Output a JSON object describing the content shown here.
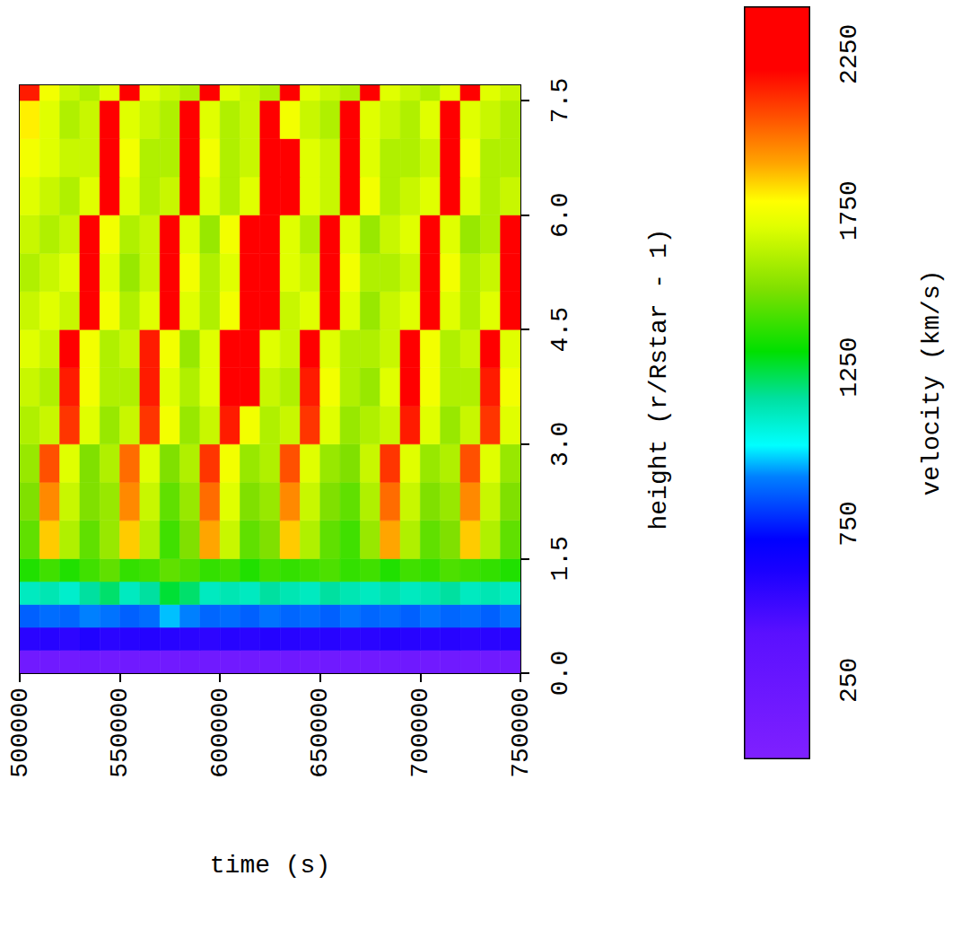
{
  "chart_data": {
    "type": "heatmap",
    "x_label": "time (s)",
    "y_label": "height (r/Rstar - 1)",
    "xlim": [
      500000,
      750000
    ],
    "ylim": [
      0,
      7.7
    ],
    "xticks": [
      500000,
      550000,
      600000,
      650000,
      700000,
      750000
    ],
    "yticks": [
      {
        "value": 0,
        "label": "0.0"
      },
      1.5,
      {
        "value": 3,
        "label": "3.0"
      },
      4.5,
      {
        "value": 6,
        "label": "6.0"
      },
      7.5
    ],
    "grid": false,
    "cells": {
      "x_edges": [
        500000,
        510000,
        520000,
        530000,
        540000,
        550000,
        560000,
        570000,
        580000,
        590000,
        600000,
        610000,
        620000,
        630000,
        640000,
        650000,
        660000,
        670000,
        680000,
        690000,
        700000,
        710000,
        720000,
        730000,
        740000,
        750000
      ],
      "y_edges": [
        0,
        0.3,
        0.6,
        0.9,
        1.2,
        1.5,
        2,
        2.5,
        3,
        3.5,
        4,
        4.5,
        5,
        5.5,
        6,
        6.5,
        7,
        7.5,
        7.7
      ],
      "values": [
        [
          150,
          160,
          150,
          170,
          150,
          160,
          150,
          150,
          170,
          160,
          150,
          160,
          150,
          170,
          150,
          160,
          150,
          150,
          160,
          170,
          150,
          160,
          150,
          160,
          150
        ],
        [
          550,
          560,
          540,
          580,
          550,
          560,
          570,
          560,
          550,
          540,
          560,
          550,
          570,
          560,
          550,
          560,
          540,
          550,
          570,
          560,
          550,
          560,
          540,
          550,
          560
        ],
        [
          850,
          870,
          860,
          900,
          880,
          850,
          870,
          950,
          900,
          860,
          870,
          850,
          880,
          860,
          870,
          850,
          880,
          860,
          870,
          850,
          880,
          860,
          870,
          850,
          880
        ],
        [
          1100,
          1120,
          1080,
          1150,
          1200,
          1100,
          1150,
          1250,
          1200,
          1100,
          1120,
          1100,
          1150,
          1120,
          1100,
          1150,
          1120,
          1100,
          1130,
          1100,
          1120,
          1150,
          1100,
          1120,
          1100
        ],
        [
          1350,
          1400,
          1350,
          1400,
          1450,
          1380,
          1400,
          1450,
          1420,
          1380,
          1400,
          1350,
          1400,
          1380,
          1400,
          1420,
          1380,
          1400,
          1350,
          1400,
          1380,
          1420,
          1400,
          1380,
          1350
        ],
        [
          1450,
          1850,
          1600,
          1450,
          1550,
          1850,
          1600,
          1400,
          1500,
          1900,
          1650,
          1450,
          1500,
          1850,
          1600,
          1450,
          1400,
          1550,
          1900,
          1600,
          1450,
          1500,
          1850,
          1600,
          1450
        ],
        [
          1500,
          1950,
          1650,
          1500,
          1550,
          1950,
          1650,
          1450,
          1550,
          2000,
          1700,
          1500,
          1550,
          1950,
          1650,
          1500,
          1450,
          1600,
          2000,
          1650,
          1500,
          1550,
          1950,
          1650,
          1500
        ],
        [
          1550,
          2050,
          1700,
          1500,
          1600,
          2000,
          1700,
          1500,
          1600,
          2100,
          1750,
          1550,
          1600,
          2050,
          1700,
          1550,
          1500,
          1650,
          2100,
          1700,
          1550,
          1600,
          2050,
          1700,
          1550
        ],
        [
          1600,
          1650,
          2100,
          1700,
          1550,
          1650,
          2100,
          1750,
          1550,
          1650,
          2150,
          1750,
          1600,
          1650,
          2100,
          1700,
          1550,
          1600,
          1650,
          2150,
          1700,
          1550,
          1650,
          2100,
          1700
        ],
        [
          1650,
          1600,
          2150,
          1750,
          1600,
          1600,
          2150,
          1700,
          1600,
          1700,
          2250,
          2200,
          1650,
          1600,
          2150,
          1750,
          1600,
          1550,
          1700,
          2200,
          1750,
          1600,
          1600,
          2150,
          1750
        ],
        [
          1700,
          1650,
          2200,
          1750,
          1600,
          1650,
          2150,
          1750,
          1550,
          1700,
          2250,
          2250,
          1700,
          1650,
          2200,
          1700,
          1600,
          1600,
          1650,
          2200,
          1750,
          1600,
          1650,
          2200,
          1700
        ],
        [
          1650,
          1700,
          1650,
          2200,
          1750,
          1600,
          1700,
          2200,
          1700,
          1600,
          1750,
          2250,
          2250,
          1650,
          1700,
          2200,
          1700,
          1550,
          1650,
          1700,
          2200,
          1700,
          1600,
          1700,
          2200
        ],
        [
          1600,
          1650,
          1700,
          2250,
          1700,
          1550,
          1650,
          2200,
          1750,
          1600,
          1700,
          2300,
          2250,
          1700,
          1650,
          2200,
          1750,
          1600,
          1600,
          1650,
          2250,
          1750,
          1600,
          1650,
          2250
        ],
        [
          1650,
          1600,
          1650,
          2200,
          1750,
          1600,
          1650,
          2250,
          1700,
          1550,
          1750,
          2300,
          2300,
          1700,
          1600,
          2250,
          1700,
          1550,
          1650,
          1700,
          2200,
          1700,
          1550,
          1600,
          2200
        ],
        [
          1700,
          1650,
          1600,
          1700,
          2250,
          1700,
          1600,
          1650,
          2200,
          1700,
          1600,
          1700,
          2300,
          2250,
          1700,
          1650,
          2200,
          1750,
          1600,
          1650,
          1700,
          2250,
          1700,
          1600,
          1650
        ],
        [
          1750,
          1700,
          1650,
          1650,
          2250,
          1750,
          1600,
          1600,
          2250,
          1750,
          1600,
          1650,
          2250,
          2200,
          1700,
          1650,
          2250,
          1700,
          1600,
          1600,
          1650,
          2200,
          1750,
          1600,
          1600
        ],
        [
          1800,
          1700,
          1600,
          1650,
          2200,
          1700,
          1650,
          1600,
          2250,
          1700,
          1600,
          1650,
          2300,
          1750,
          1650,
          1600,
          2200,
          1700,
          1650,
          1600,
          1700,
          2250,
          1700,
          1650,
          1600
        ],
        [
          2150,
          1750,
          1650,
          1600,
          1700,
          2200,
          1700,
          1650,
          1600,
          2200,
          1700,
          1650,
          1600,
          2250,
          1700,
          1650,
          1600,
          2200,
          1700,
          1650,
          1600,
          1700,
          2200,
          1700,
          1650
        ]
      ]
    },
    "colorbar": {
      "label": "velocity (km/s)",
      "range": [
        0,
        2400
      ],
      "ticks": [
        250,
        750,
        1250,
        1750,
        2250
      ]
    }
  }
}
